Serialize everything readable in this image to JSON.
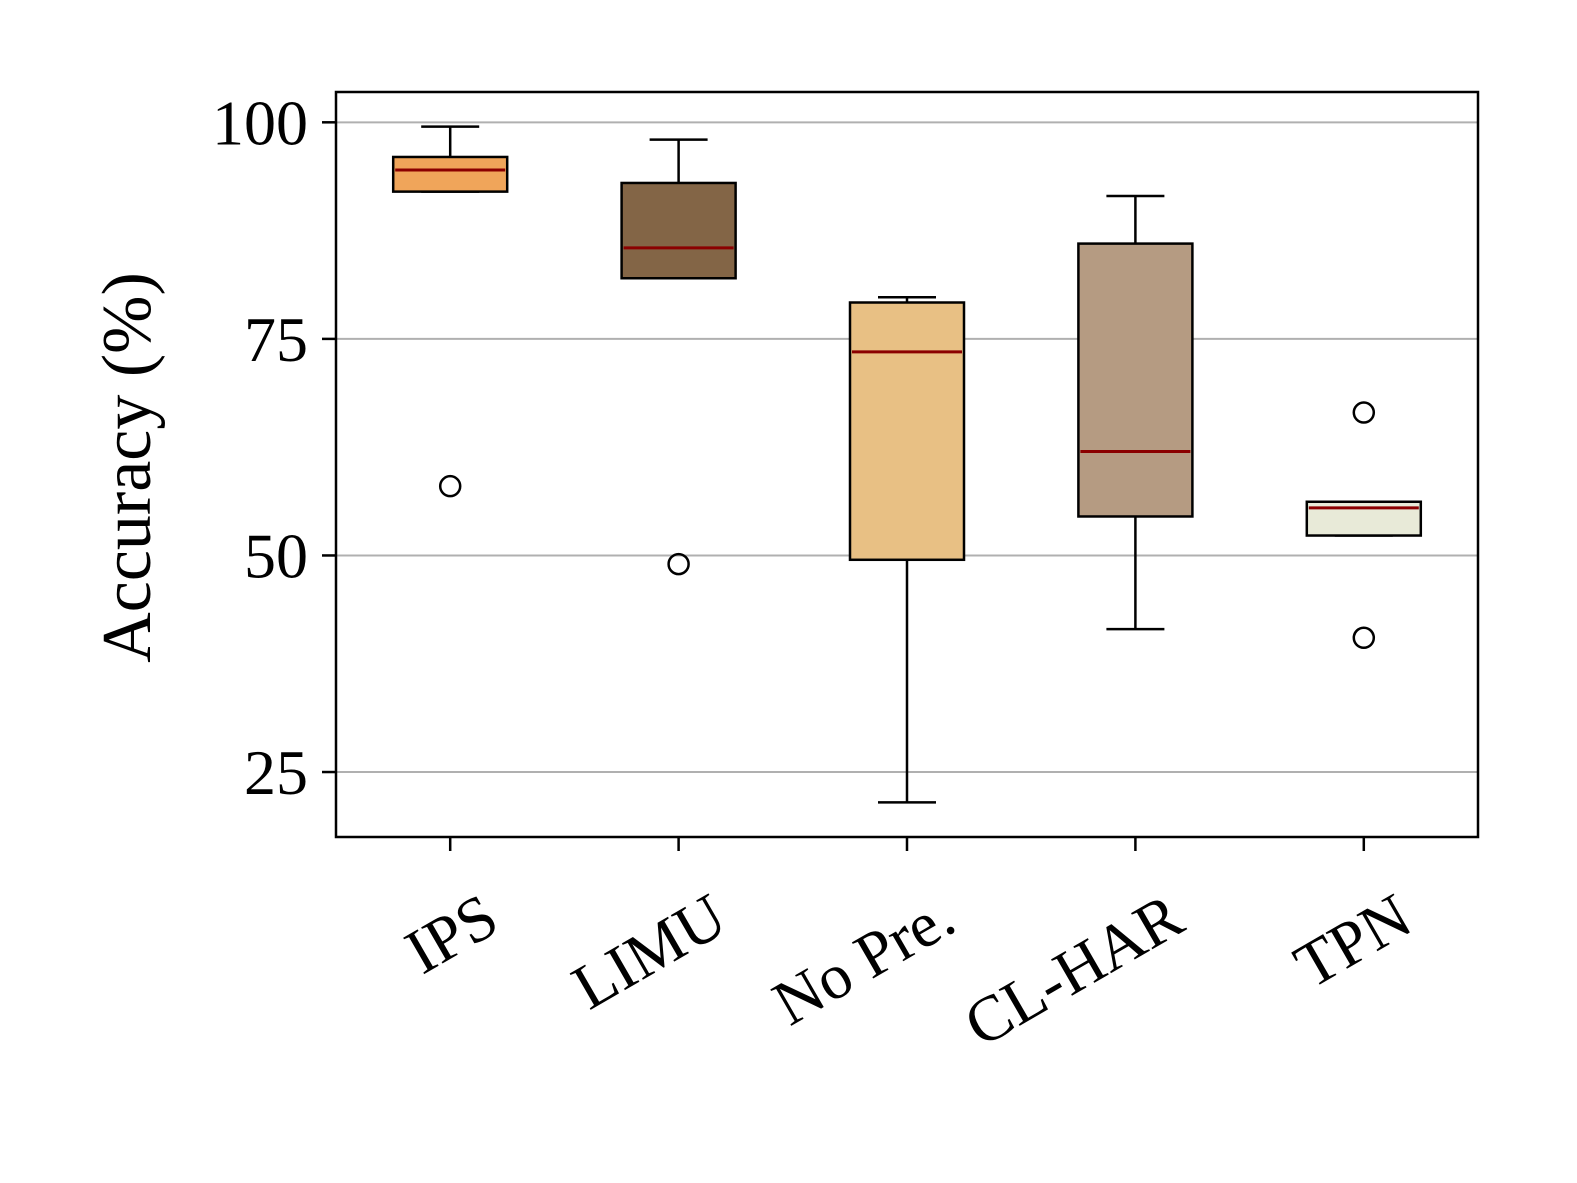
{
  "chart_data": {
    "type": "box",
    "title": "",
    "xlabel": "",
    "ylabel": "Accuracy (%)",
    "ylim": [
      17.5,
      103.5
    ],
    "yticks": [
      25,
      50,
      75,
      100
    ],
    "grid": "horizontal",
    "legend": "none",
    "categories": [
      "IPS",
      "LIMU",
      "No Pre.",
      "CL-HAR",
      "TPN"
    ],
    "boxes": [
      {
        "category": "IPS",
        "whisker_low": 92,
        "q1": 92,
        "median": 94.5,
        "q3": 96,
        "whisker_high": 99.5,
        "outliers": [
          58
        ],
        "color": "#f0a55a"
      },
      {
        "category": "LIMU",
        "whisker_low": 82,
        "q1": 82,
        "median": 85.5,
        "q3": 93,
        "whisker_high": 98,
        "outliers": [
          49
        ],
        "color": "#836546"
      },
      {
        "category": "No Pre.",
        "whisker_low": 21.5,
        "q1": 49.5,
        "median": 73.5,
        "q3": 79.2,
        "whisker_high": 79.8,
        "outliers": [],
        "color": "#e8c084"
      },
      {
        "category": "CL-HAR",
        "whisker_low": 41.5,
        "q1": 54.5,
        "median": 62,
        "q3": 86,
        "whisker_high": 91.5,
        "outliers": [],
        "color": "#b59b82"
      },
      {
        "category": "TPN",
        "whisker_low": 52.3,
        "q1": 52.3,
        "median": 55.5,
        "q3": 56.2,
        "whisker_high": 56.2,
        "outliers": [
          66.5,
          40.5
        ],
        "color": "#e8ead8"
      }
    ],
    "median_color": "#8b0000"
  }
}
